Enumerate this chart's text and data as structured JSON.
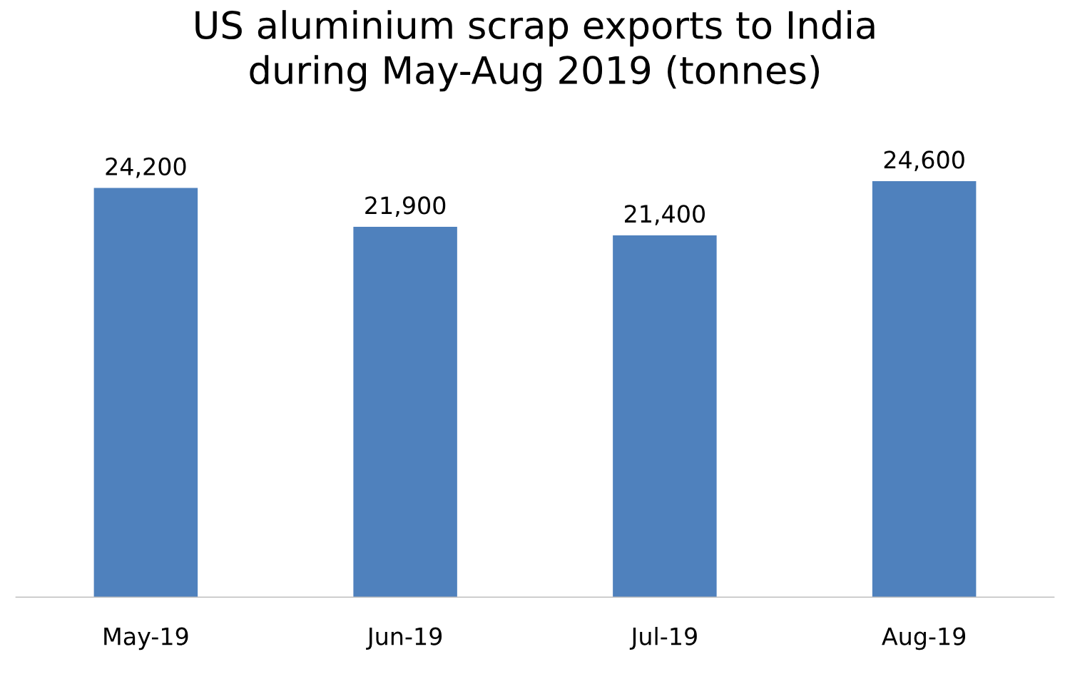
{
  "chart_data": {
    "type": "bar",
    "title": "US aluminium scrap exports to India\nduring May-Aug 2019 (tonnes)",
    "categories": [
      "May-19",
      "Jun-19",
      "Jul-19",
      "Aug-19"
    ],
    "values": [
      24200,
      21900,
      21400,
      24600
    ],
    "value_labels": [
      "24,200",
      "21,900",
      "21,400",
      "24,600"
    ],
    "color": "#4f81bd",
    "tick_labels": "x",
    "grid": false,
    "legend": false
  }
}
